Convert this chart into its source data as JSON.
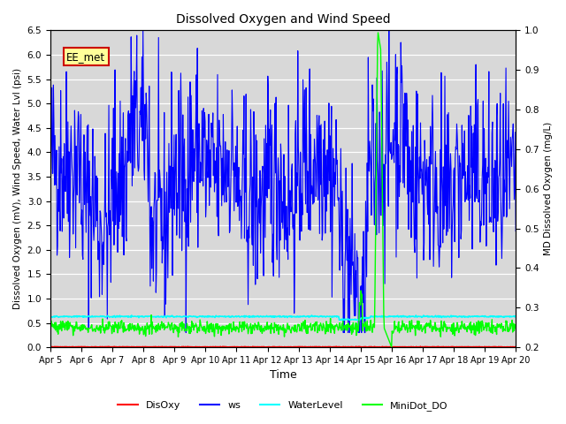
{
  "title": "Dissolved Oxygen and Wind Speed",
  "ylabel_left": "Dissolved Oxygen (mV), Wind Speed, Water Lvl (psi)",
  "ylabel_right": "MD Dissolved Oxygen (mg/L)",
  "xlabel": "Time",
  "ylim_left": [
    0.0,
    6.5
  ],
  "ylim_right": [
    0.2,
    1.0
  ],
  "background_color": "#d8d8d8",
  "tag_text": "EE_met",
  "tag_facecolor": "#ffff99",
  "tag_edgecolor": "#cc0000",
  "ws_color": "blue",
  "disoxy_color": "red",
  "waterlevel_color": "cyan",
  "minidot_color": "lime",
  "legend_labels": [
    "DisOxy",
    "ws",
    "WaterLevel",
    "MiniDot_DO"
  ],
  "xtick_labels": [
    "Apr 5",
    "Apr 6",
    "Apr 7",
    "Apr 8",
    "Apr 9",
    "Apr 10",
    "Apr 11",
    "Apr 12",
    "Apr 13",
    "Apr 14",
    "Apr 15",
    "Apr 16",
    "Apr 17",
    "Apr 18",
    "Apr 19",
    "Apr 20"
  ],
  "n_points": 900,
  "date_start": 5.0,
  "date_end": 20.0,
  "seed": 42
}
